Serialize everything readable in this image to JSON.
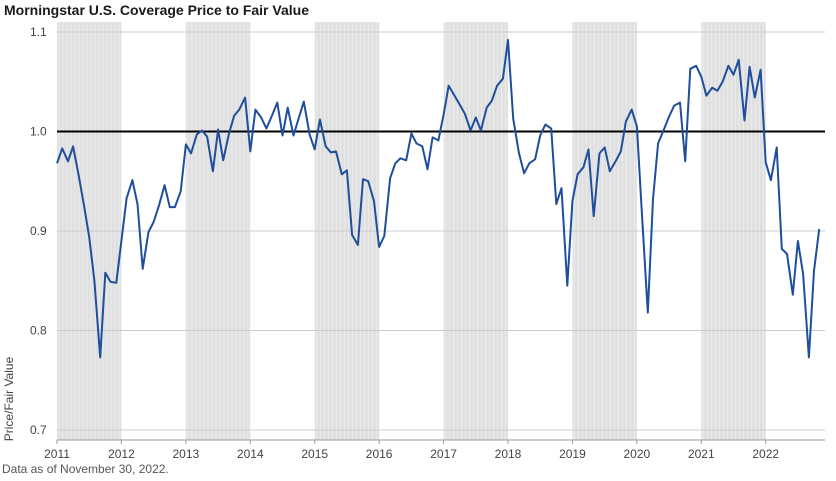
{
  "title": "Morningstar U.S. Coverage Price to Fair Value",
  "note": "Data as of November 30, 2022.",
  "chart_data": {
    "type": "line",
    "title": "Morningstar U.S. Coverage Price to Fair Value",
    "ylabel": "Price/Fair Value",
    "xlabel": "",
    "xlim": [
      2011.0,
      2022.92
    ],
    "ylim": [
      0.69,
      1.11
    ],
    "yticks": [
      0.7,
      0.8,
      0.9,
      1.0,
      1.1
    ],
    "ytick_labels": [
      "0.7",
      "0.8",
      "0.9",
      "1.0",
      "1.1"
    ],
    "xticks": [
      2011,
      2012,
      2013,
      2014,
      2015,
      2016,
      2017,
      2018,
      2019,
      2020,
      2021,
      2022
    ],
    "xtick_labels": [
      "2011",
      "2012",
      "2013",
      "2014",
      "2015",
      "2016",
      "2017",
      "2018",
      "2019",
      "2020",
      "2021",
      "2022"
    ],
    "reference_line": 1.0,
    "shaded_years": [
      2011,
      2013,
      2015,
      2017,
      2019,
      2021
    ],
    "grid": "horizontal",
    "colors": {
      "line": "#1f4e9c",
      "reference": "#000000",
      "band": "#e0e0e0",
      "grid": "#cccccc"
    },
    "series": [
      {
        "values": [
          [
            2011.0,
            0.968
          ],
          [
            2011.08,
            0.983
          ],
          [
            2011.17,
            0.97
          ],
          [
            2011.25,
            0.985
          ],
          [
            2011.33,
            0.958
          ],
          [
            2011.42,
            0.925
          ],
          [
            2011.5,
            0.894
          ],
          [
            2011.58,
            0.85
          ],
          [
            2011.67,
            0.773
          ],
          [
            2011.75,
            0.858
          ],
          [
            2011.83,
            0.849
          ],
          [
            2011.92,
            0.848
          ],
          [
            2012.0,
            0.89
          ],
          [
            2012.08,
            0.933
          ],
          [
            2012.17,
            0.951
          ],
          [
            2012.25,
            0.927
          ],
          [
            2012.33,
            0.862
          ],
          [
            2012.42,
            0.899
          ],
          [
            2012.5,
            0.909
          ],
          [
            2012.58,
            0.925
          ],
          [
            2012.67,
            0.946
          ],
          [
            2012.75,
            0.924
          ],
          [
            2012.83,
            0.924
          ],
          [
            2012.92,
            0.94
          ],
          [
            2013.0,
            0.987
          ],
          [
            2013.08,
            0.978
          ],
          [
            2013.17,
            0.997
          ],
          [
            2013.25,
            1.001
          ],
          [
            2013.33,
            0.995
          ],
          [
            2013.42,
            0.96
          ],
          [
            2013.5,
            1.002
          ],
          [
            2013.58,
            0.971
          ],
          [
            2013.67,
            0.998
          ],
          [
            2013.75,
            1.016
          ],
          [
            2013.83,
            1.022
          ],
          [
            2013.92,
            1.034
          ],
          [
            2014.0,
            0.98
          ],
          [
            2014.08,
            1.022
          ],
          [
            2014.17,
            1.014
          ],
          [
            2014.25,
            1.003
          ],
          [
            2014.33,
            1.015
          ],
          [
            2014.42,
            1.029
          ],
          [
            2014.5,
            0.996
          ],
          [
            2014.58,
            1.024
          ],
          [
            2014.67,
            0.996
          ],
          [
            2014.75,
            1.013
          ],
          [
            2014.83,
            1.03
          ],
          [
            2014.92,
            0.997
          ],
          [
            2015.0,
            0.982
          ],
          [
            2015.08,
            1.012
          ],
          [
            2015.17,
            0.985
          ],
          [
            2015.25,
            0.979
          ],
          [
            2015.33,
            0.98
          ],
          [
            2015.42,
            0.957
          ],
          [
            2015.5,
            0.961
          ],
          [
            2015.58,
            0.896
          ],
          [
            2015.67,
            0.886
          ],
          [
            2015.75,
            0.952
          ],
          [
            2015.83,
            0.95
          ],
          [
            2015.92,
            0.93
          ],
          [
            2016.0,
            0.884
          ],
          [
            2016.08,
            0.895
          ],
          [
            2016.17,
            0.953
          ],
          [
            2016.25,
            0.968
          ],
          [
            2016.33,
            0.973
          ],
          [
            2016.42,
            0.971
          ],
          [
            2016.5,
            0.998
          ],
          [
            2016.58,
            0.988
          ],
          [
            2016.67,
            0.985
          ],
          [
            2016.75,
            0.962
          ],
          [
            2016.83,
            0.994
          ],
          [
            2016.92,
            0.991
          ],
          [
            2017.0,
            1.017
          ],
          [
            2017.08,
            1.046
          ],
          [
            2017.17,
            1.036
          ],
          [
            2017.25,
            1.027
          ],
          [
            2017.33,
            1.018
          ],
          [
            2017.42,
            1.001
          ],
          [
            2017.5,
            1.014
          ],
          [
            2017.58,
            1.001
          ],
          [
            2017.67,
            1.024
          ],
          [
            2017.75,
            1.031
          ],
          [
            2017.83,
            1.046
          ],
          [
            2017.92,
            1.053
          ],
          [
            2018.0,
            1.092
          ],
          [
            2018.08,
            1.013
          ],
          [
            2018.17,
            0.978
          ],
          [
            2018.25,
            0.958
          ],
          [
            2018.33,
            0.968
          ],
          [
            2018.42,
            0.972
          ],
          [
            2018.5,
            0.996
          ],
          [
            2018.58,
            1.007
          ],
          [
            2018.67,
            1.003
          ],
          [
            2018.75,
            0.927
          ],
          [
            2018.83,
            0.943
          ],
          [
            2018.92,
            0.845
          ],
          [
            2019.0,
            0.93
          ],
          [
            2019.08,
            0.957
          ],
          [
            2019.17,
            0.964
          ],
          [
            2019.25,
            0.982
          ],
          [
            2019.33,
            0.915
          ],
          [
            2019.42,
            0.978
          ],
          [
            2019.5,
            0.984
          ],
          [
            2019.58,
            0.96
          ],
          [
            2019.67,
            0.97
          ],
          [
            2019.75,
            0.98
          ],
          [
            2019.83,
            1.01
          ],
          [
            2019.92,
            1.022
          ],
          [
            2020.0,
            1.005
          ],
          [
            2020.08,
            0.916
          ],
          [
            2020.17,
            0.818
          ],
          [
            2020.25,
            0.932
          ],
          [
            2020.33,
            0.988
          ],
          [
            2020.42,
            1.002
          ],
          [
            2020.5,
            1.015
          ],
          [
            2020.58,
            1.026
          ],
          [
            2020.67,
            1.029
          ],
          [
            2020.75,
            0.97
          ],
          [
            2020.83,
            1.063
          ],
          [
            2020.92,
            1.066
          ],
          [
            2021.0,
            1.055
          ],
          [
            2021.08,
            1.036
          ],
          [
            2021.17,
            1.044
          ],
          [
            2021.25,
            1.041
          ],
          [
            2021.33,
            1.05
          ],
          [
            2021.42,
            1.066
          ],
          [
            2021.5,
            1.057
          ],
          [
            2021.58,
            1.072
          ],
          [
            2021.67,
            1.011
          ],
          [
            2021.75,
            1.065
          ],
          [
            2021.83,
            1.034
          ],
          [
            2021.92,
            1.062
          ],
          [
            2022.0,
            0.969
          ],
          [
            2022.08,
            0.951
          ],
          [
            2022.17,
            0.984
          ],
          [
            2022.25,
            0.882
          ],
          [
            2022.33,
            0.877
          ],
          [
            2022.42,
            0.836
          ],
          [
            2022.5,
            0.89
          ],
          [
            2022.58,
            0.857
          ],
          [
            2022.67,
            0.773
          ],
          [
            2022.75,
            0.86
          ],
          [
            2022.83,
            0.902
          ]
        ]
      }
    ]
  }
}
